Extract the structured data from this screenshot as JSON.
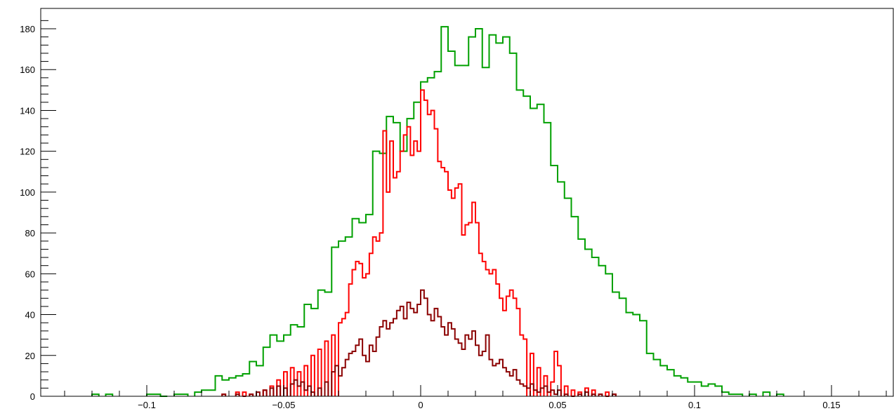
{
  "chart_data": {
    "type": "histogram",
    "title": "",
    "xlabel": "",
    "ylabel": "",
    "xlim": [
      -0.14,
      0.17
    ],
    "ylim": [
      0,
      185
    ],
    "x_ticks": [
      -0.1,
      -0.05,
      0,
      0.05,
      0.1,
      0.15
    ],
    "x_tick_labels": [
      "−0.1",
      "−0.05",
      "0",
      "0.05",
      "0.1",
      "0.15"
    ],
    "y_ticks": [
      0,
      20,
      40,
      60,
      80,
      100,
      120,
      140,
      160,
      180
    ],
    "y_tick_labels": [
      "0",
      "20",
      "40",
      "60",
      "80",
      "100",
      "120",
      "140",
      "160",
      "180"
    ],
    "grid": false,
    "series": [
      {
        "color": "#00a000",
        "bin_width": 0.0025,
        "bins": [
          [
            -0.12,
            1
          ],
          [
            -0.115,
            1
          ],
          [
            -0.1,
            1
          ],
          [
            -0.0975,
            1
          ],
          [
            -0.095,
            0
          ],
          [
            -0.09,
            1
          ],
          [
            -0.0875,
            1
          ],
          [
            -0.0825,
            2
          ],
          [
            -0.08,
            3
          ],
          [
            -0.0775,
            3
          ],
          [
            -0.075,
            10
          ],
          [
            -0.0725,
            8
          ],
          [
            -0.07,
            9
          ],
          [
            -0.0675,
            10
          ],
          [
            -0.065,
            11
          ],
          [
            -0.0625,
            17
          ],
          [
            -0.06,
            15
          ],
          [
            -0.0575,
            24
          ],
          [
            -0.055,
            30
          ],
          [
            -0.0525,
            27
          ],
          [
            -0.05,
            30
          ],
          [
            -0.0475,
            35
          ],
          [
            -0.045,
            34
          ],
          [
            -0.0425,
            45
          ],
          [
            -0.04,
            43
          ],
          [
            -0.0375,
            52
          ],
          [
            -0.035,
            51
          ],
          [
            -0.0325,
            73
          ],
          [
            -0.03,
            76
          ],
          [
            -0.0275,
            78
          ],
          [
            -0.025,
            87
          ],
          [
            -0.0225,
            85
          ],
          [
            -0.02,
            89
          ],
          [
            -0.0175,
            120
          ],
          [
            -0.015,
            119
          ],
          [
            -0.0125,
            137
          ],
          [
            -0.01,
            134
          ],
          [
            -0.0075,
            120
          ],
          [
            -0.005,
            136
          ],
          [
            -0.0025,
            144
          ],
          [
            0,
            154
          ],
          [
            0.0025,
            156
          ],
          [
            0.005,
            159
          ],
          [
            0.0075,
            181
          ],
          [
            0.01,
            169
          ],
          [
            0.0125,
            162
          ],
          [
            0.015,
            162
          ],
          [
            0.0175,
            176
          ],
          [
            0.02,
            180
          ],
          [
            0.0225,
            161
          ],
          [
            0.025,
            177
          ],
          [
            0.0275,
            173
          ],
          [
            0.03,
            176
          ],
          [
            0.0325,
            168
          ],
          [
            0.035,
            150
          ],
          [
            0.0375,
            147
          ],
          [
            0.04,
            141
          ],
          [
            0.0425,
            143
          ],
          [
            0.045,
            134
          ],
          [
            0.0475,
            113
          ],
          [
            0.05,
            105
          ],
          [
            0.0525,
            97
          ],
          [
            0.055,
            88
          ],
          [
            0.0575,
            77
          ],
          [
            0.06,
            72
          ],
          [
            0.0625,
            68
          ],
          [
            0.065,
            64
          ],
          [
            0.0675,
            60
          ],
          [
            0.07,
            51
          ],
          [
            0.0725,
            48
          ],
          [
            0.075,
            41
          ],
          [
            0.0775,
            40
          ],
          [
            0.08,
            37
          ],
          [
            0.0825,
            21
          ],
          [
            0.085,
            18
          ],
          [
            0.0875,
            15
          ],
          [
            0.09,
            13
          ],
          [
            0.0925,
            10
          ],
          [
            0.095,
            9
          ],
          [
            0.0975,
            7
          ],
          [
            0.1,
            7
          ],
          [
            0.1025,
            5
          ],
          [
            0.105,
            6
          ],
          [
            0.1075,
            5
          ],
          [
            0.11,
            2
          ],
          [
            0.1125,
            1
          ],
          [
            0.115,
            1
          ],
          [
            0.12,
            1
          ],
          [
            0.125,
            2
          ],
          [
            0.13,
            1
          ]
        ]
      },
      {
        "color": "#ff0000",
        "bin_width": 0.00125,
        "bins": [
          [
            -0.0725,
            1
          ],
          [
            -0.0675,
            2
          ],
          [
            -0.065,
            2
          ],
          [
            -0.0625,
            1
          ],
          [
            -0.0575,
            3
          ],
          [
            -0.055,
            5
          ],
          [
            -0.0525,
            8
          ],
          [
            -0.05,
            12
          ],
          [
            -0.0475,
            14
          ],
          [
            -0.045,
            12
          ],
          [
            -0.0425,
            15
          ],
          [
            -0.04,
            20
          ],
          [
            -0.0375,
            23
          ],
          [
            -0.035,
            27
          ],
          [
            -0.0325,
            30
          ],
          [
            -0.03,
            36
          ],
          [
            -0.02875,
            38
          ],
          [
            -0.0275,
            41
          ],
          [
            -0.02625,
            55
          ],
          [
            -0.025,
            62
          ],
          [
            -0.02375,
            66
          ],
          [
            -0.0225,
            65
          ],
          [
            -0.02125,
            58
          ],
          [
            -0.02,
            60
          ],
          [
            -0.01875,
            70
          ],
          [
            -0.0175,
            78
          ],
          [
            -0.01625,
            76
          ],
          [
            -0.015,
            80
          ],
          [
            -0.01375,
            130
          ],
          [
            -0.0125,
            100
          ],
          [
            -0.01125,
            125
          ],
          [
            -0.01,
            107
          ],
          [
            -0.00875,
            110
          ],
          [
            -0.0075,
            120
          ],
          [
            -0.00625,
            128
          ],
          [
            -0.005,
            132
          ],
          [
            -0.00375,
            118
          ],
          [
            -0.0025,
            125
          ],
          [
            -0.00125,
            120
          ],
          [
            0,
            150
          ],
          [
            0.00125,
            145
          ],
          [
            0.0025,
            138
          ],
          [
            0.00375,
            140
          ],
          [
            0.005,
            131
          ],
          [
            0.00625,
            115
          ],
          [
            0.0075,
            112
          ],
          [
            0.00875,
            110
          ],
          [
            0.01,
            101
          ],
          [
            0.01125,
            97
          ],
          [
            0.0125,
            102
          ],
          [
            0.01375,
            104
          ],
          [
            0.015,
            79
          ],
          [
            0.01625,
            84
          ],
          [
            0.0175,
            85
          ],
          [
            0.01875,
            95
          ],
          [
            0.02,
            85
          ],
          [
            0.02125,
            70
          ],
          [
            0.0225,
            66
          ],
          [
            0.02375,
            62
          ],
          [
            0.025,
            60
          ],
          [
            0.02625,
            62
          ],
          [
            0.0275,
            55
          ],
          [
            0.02875,
            48
          ],
          [
            0.03,
            42
          ],
          [
            0.03125,
            49
          ],
          [
            0.0325,
            52
          ],
          [
            0.03375,
            48
          ],
          [
            0.035,
            43
          ],
          [
            0.03625,
            30
          ],
          [
            0.0375,
            28
          ],
          [
            0.04,
            21
          ],
          [
            0.0425,
            14
          ],
          [
            0.045,
            10
          ],
          [
            0.0475,
            7
          ],
          [
            0.04875,
            22
          ],
          [
            0.05,
            15
          ],
          [
            0.0525,
            5
          ],
          [
            0.055,
            3
          ],
          [
            0.0575,
            2
          ],
          [
            0.06,
            4
          ],
          [
            0.0625,
            3
          ],
          [
            0.065,
            1
          ],
          [
            0.0675,
            2
          ],
          [
            0.07,
            1
          ]
        ]
      },
      {
        "color": "#8b0000",
        "bin_width": 0.00125,
        "bins": [
          [
            -0.0725,
            1
          ],
          [
            -0.0675,
            1
          ],
          [
            -0.065,
            0
          ],
          [
            -0.0625,
            1
          ],
          [
            -0.06,
            2
          ],
          [
            -0.0575,
            3
          ],
          [
            -0.055,
            4
          ],
          [
            -0.0525,
            5
          ],
          [
            -0.05,
            4
          ],
          [
            -0.0475,
            6
          ],
          [
            -0.04625,
            8
          ],
          [
            -0.045,
            5
          ],
          [
            -0.04375,
            7
          ],
          [
            -0.0425,
            3
          ],
          [
            -0.04125,
            5
          ],
          [
            -0.04,
            2
          ],
          [
            -0.0375,
            4
          ],
          [
            -0.035,
            7
          ],
          [
            -0.0325,
            12
          ],
          [
            -0.03125,
            15
          ],
          [
            -0.03,
            10
          ],
          [
            -0.02875,
            14
          ],
          [
            -0.0275,
            18
          ],
          [
            -0.02625,
            21
          ],
          [
            -0.025,
            22
          ],
          [
            -0.02375,
            25
          ],
          [
            -0.0225,
            28
          ],
          [
            -0.02125,
            20
          ],
          [
            -0.02,
            17
          ],
          [
            -0.01875,
            25
          ],
          [
            -0.0175,
            22
          ],
          [
            -0.01625,
            29
          ],
          [
            -0.015,
            34
          ],
          [
            -0.01375,
            37
          ],
          [
            -0.0125,
            33
          ],
          [
            -0.01125,
            36
          ],
          [
            -0.01,
            38
          ],
          [
            -0.00875,
            42
          ],
          [
            -0.0075,
            44
          ],
          [
            -0.00625,
            38
          ],
          [
            -0.005,
            46
          ],
          [
            -0.00375,
            43
          ],
          [
            -0.0025,
            41
          ],
          [
            -0.00125,
            45
          ],
          [
            0,
            52
          ],
          [
            0.00125,
            48
          ],
          [
            0.0025,
            40
          ],
          [
            0.00375,
            37
          ],
          [
            0.005,
            43
          ],
          [
            0.00625,
            39
          ],
          [
            0.0075,
            34
          ],
          [
            0.00875,
            30
          ],
          [
            0.01,
            36
          ],
          [
            0.01125,
            33
          ],
          [
            0.0125,
            28
          ],
          [
            0.01375,
            26
          ],
          [
            0.015,
            23
          ],
          [
            0.01625,
            30
          ],
          [
            0.0175,
            28
          ],
          [
            0.01875,
            32
          ],
          [
            0.02,
            25
          ],
          [
            0.02125,
            20
          ],
          [
            0.0225,
            22
          ],
          [
            0.02375,
            30
          ],
          [
            0.025,
            18
          ],
          [
            0.02625,
            15
          ],
          [
            0.0275,
            16
          ],
          [
            0.02875,
            18
          ],
          [
            0.03,
            14
          ],
          [
            0.03125,
            12
          ],
          [
            0.0325,
            10
          ],
          [
            0.03375,
            13
          ],
          [
            0.035,
            8
          ],
          [
            0.03625,
            6
          ],
          [
            0.0375,
            5
          ],
          [
            0.03875,
            4
          ],
          [
            0.04,
            6
          ],
          [
            0.04125,
            3
          ],
          [
            0.0425,
            2
          ],
          [
            0.04375,
            4
          ],
          [
            0.045,
            5
          ],
          [
            0.04625,
            2
          ],
          [
            0.0475,
            3
          ],
          [
            0.04875,
            1
          ],
          [
            0.05,
            3
          ],
          [
            0.0525,
            1
          ],
          [
            0.055,
            0
          ],
          [
            0.0575,
            1
          ],
          [
            0.06,
            2
          ],
          [
            0.0625,
            1
          ],
          [
            0.065,
            1
          ],
          [
            0.0675,
            0
          ],
          [
            0.07,
            1
          ]
        ]
      }
    ]
  }
}
